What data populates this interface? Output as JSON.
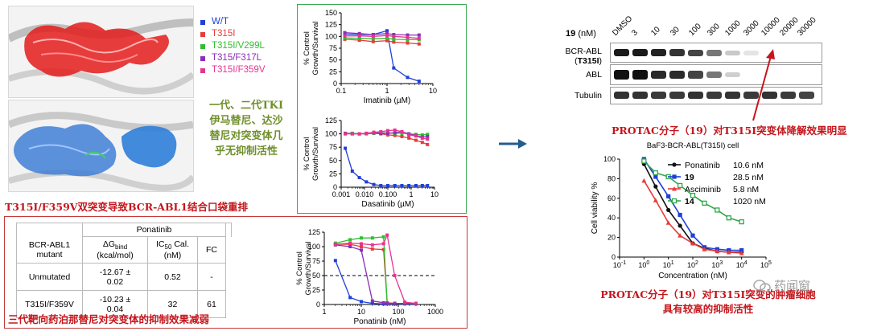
{
  "colors": {
    "wt": "#1f3fd9",
    "t315i": "#e83b3b",
    "v299l": "#2fbf2f",
    "f317l": "#8b2fb8",
    "f359v": "#e8338f",
    "accent_red": "#c4161c",
    "olive": "#6f8f2a",
    "arrow": "#235d8c",
    "green_frame": "#37a850",
    "red_frame": "#c43a3a"
  },
  "legend": [
    {
      "name": "W/T",
      "color": "#1f3fd9",
      "marker": "square"
    },
    {
      "name": "T315I",
      "color": "#e83b3b",
      "marker": "square"
    },
    {
      "name": "T315I/V299L",
      "color": "#2fbf2f",
      "marker": "square"
    },
    {
      "name": "T315/F317L",
      "color": "#8b2fb8",
      "marker": "square"
    },
    {
      "name": "T315I/F359V",
      "color": "#e8338f",
      "marker": "square"
    }
  ],
  "text": {
    "tki_note": [
      "一代、二代TKI",
      "伊马替尼、达沙",
      "替尼对突变体几",
      "乎无抑制活性"
    ],
    "binding_note": "T315I/F359V双突变导致BCR-ABL1结合口袋重排",
    "ponatinib_note": "三代靶向药泊那替尼对突变体的抑制效果减弱",
    "protac_deg_note": "PROTAC分子（19）对T315I突变体降解效果明显",
    "protac_viab_note": [
      "PROTAC分子（19）对T315I突变的肿瘤细胞",
      "具有较高的抑制活性"
    ],
    "watermark": "药闻窗"
  },
  "ponatinib_table": {
    "group": "Ponatinib",
    "headers": [
      "BCR-ABL1 mutant",
      "ΔGbind (kcal/mol)",
      "IC50 Cal. (nM)",
      "FC"
    ],
    "rows": [
      [
        "Unmutated",
        "-12.67 ± 0.02",
        "0.52",
        "-"
      ],
      [
        "T315I/F359V",
        "-10.23 ± 0.04",
        "32",
        "61"
      ]
    ]
  },
  "western_blot": {
    "compound_label": "19",
    "unit": "(nM)",
    "concentrations": [
      "DMSO",
      "3",
      "10",
      "30",
      "100",
      "300",
      "1000",
      "3000",
      "10000",
      "20000",
      "30000"
    ],
    "rows": [
      "BCR-ABL (T315I)",
      "ABL",
      "Tubulin"
    ]
  },
  "chart_data": [
    {
      "type": "line",
      "id": "imatinib",
      "title": "",
      "xlabel": "Imatinib (µM)",
      "ylabel": "% Control Growth/Survival",
      "xscale": "log",
      "xlim": [
        0.1,
        10
      ],
      "ylim": [
        0,
        150
      ],
      "xticks": [
        "0.1",
        "1",
        "10"
      ],
      "yticks": [
        "0",
        "25",
        "50",
        "75",
        "100",
        "125",
        "150"
      ],
      "x": [
        0.12,
        0.25,
        0.5,
        1,
        1.4,
        2.8,
        5
      ],
      "series": [
        {
          "name": "W/T",
          "values": [
            105,
            104,
            104,
            112,
            33,
            13,
            5
          ]
        },
        {
          "name": "T315I",
          "values": [
            94,
            92,
            89,
            91,
            88,
            86,
            84
          ]
        },
        {
          "name": "T315I/V299L",
          "values": [
            97,
            96,
            95,
            96,
            94,
            93,
            93
          ]
        },
        {
          "name": "T315/F317L",
          "values": [
            108,
            106,
            104,
            106,
            104,
            103,
            103
          ]
        },
        {
          "name": "T315I/F359V",
          "values": [
            101,
            101,
            100,
            102,
            100,
            98,
            96
          ]
        }
      ]
    },
    {
      "type": "line",
      "id": "dasatinib",
      "title": "",
      "xlabel": "Dasatinib (µM)",
      "ylabel": "% Control Growth/Survival",
      "xscale": "log",
      "xlim": [
        0.001,
        10
      ],
      "ylim": [
        0,
        125
      ],
      "xticks": [
        "0.001",
        "0.010",
        "0.100",
        "1",
        "10"
      ],
      "yticks": [
        "0",
        "25",
        "50",
        "75",
        "100",
        "125"
      ],
      "x": [
        0.0015,
        0.003,
        0.006,
        0.012,
        0.025,
        0.05,
        0.1,
        0.2,
        0.4,
        0.8,
        1.6,
        3,
        5
      ],
      "series": [
        {
          "name": "W/T",
          "values": [
            73,
            30,
            18,
            10,
            5,
            3,
            3,
            3,
            3,
            3,
            3,
            3,
            3
          ]
        },
        {
          "name": "T315I",
          "values": [
            100,
            101,
            100,
            100,
            101,
            100,
            98,
            97,
            95,
            92,
            88,
            84,
            80
          ]
        },
        {
          "name": "T315I/V299L",
          "values": [
            101,
            101,
            100,
            100,
            101,
            102,
            102,
            101,
            101,
            100,
            99,
            98,
            99
          ]
        },
        {
          "name": "T315/F317L",
          "values": [
            101,
            100,
            100,
            101,
            102,
            101,
            101,
            102,
            104,
            100,
            97,
            94,
            95
          ]
        },
        {
          "name": "T315I/F359V",
          "values": [
            100,
            100,
            100,
            101,
            103,
            104,
            106,
            107,
            104,
            98,
            96,
            92,
            90
          ]
        }
      ]
    },
    {
      "type": "line",
      "id": "ponatinib",
      "title": "",
      "xlabel": "Ponatinib (nM)",
      "ylabel": "% Control Growth/Survival",
      "xscale": "log",
      "xlim": [
        1,
        1000
      ],
      "ylim": [
        0,
        125
      ],
      "xticks": [
        "1",
        "10",
        "100",
        "1000"
      ],
      "yticks": [
        "0",
        "25",
        "50",
        "75",
        "100",
        "125"
      ],
      "reference_line": 50,
      "x": [
        2,
        5,
        10,
        20,
        40,
        50,
        80,
        150,
        300
      ],
      "series": [
        {
          "name": "W/T",
          "values": [
            76,
            12,
            5,
            2,
            1,
            1,
            1,
            1,
            1
          ]
        },
        {
          "name": "T315I",
          "values": [
            104,
            104,
            100,
            96,
            95,
            3,
            2,
            2,
            2
          ]
        },
        {
          "name": "T315I/V299L",
          "values": [
            106,
            112,
            115,
            115,
            117,
            2,
            2,
            2,
            2
          ]
        },
        {
          "name": "T315/F317L",
          "values": [
            103,
            100,
            94,
            6,
            3,
            2,
            2,
            2,
            2
          ]
        },
        {
          "name": "T315I/F359V",
          "values": [
            104,
            106,
            105,
            103,
            105,
            120,
            50,
            4,
            2
          ]
        }
      ]
    },
    {
      "type": "scatter",
      "id": "bcr_abl_viability",
      "title": "BaF3-BCR-ABL(T315I) cell",
      "xlabel": "Concentration (nM)",
      "ylabel": "Cell viability %",
      "xscale": "log",
      "xlim": [
        0.1,
        100000
      ],
      "ylim": [
        0,
        100
      ],
      "xticks": [
        "10-1",
        "100",
        "101",
        "102",
        "103",
        "104",
        "105"
      ],
      "yticks": [
        "0",
        "20",
        "40",
        "60",
        "80",
        "100"
      ],
      "legend": [
        {
          "name": "Ponatinib",
          "value": "10.6 nM",
          "color": "#111111",
          "marker": "circle"
        },
        {
          "name": "19",
          "value": "28.5 nM",
          "color": "#1f3fd9",
          "marker": "square"
        },
        {
          "name": "Asciminib",
          "value": "5.8 nM",
          "color": "#e83b3b",
          "marker": "triangle"
        },
        {
          "name": "14",
          "value": "1020 nM",
          "color": "#2fa84a",
          "marker": "open-square"
        }
      ],
      "x": [
        1,
        3,
        10,
        30,
        100,
        300,
        1000,
        3000,
        10000
      ],
      "series": [
        {
          "name": "Ponatinib",
          "values": [
            95,
            72,
            48,
            32,
            14,
            9,
            6,
            5,
            5
          ]
        },
        {
          "name": "19",
          "values": [
            100,
            82,
            62,
            43,
            22,
            10,
            8,
            7,
            7
          ]
        },
        {
          "name": "Asciminib",
          "values": [
            78,
            58,
            35,
            22,
            14,
            8,
            6,
            5,
            4
          ]
        },
        {
          "name": "14",
          "values": [
            98,
            86,
            82,
            73,
            63,
            55,
            48,
            40,
            36
          ]
        }
      ]
    }
  ]
}
